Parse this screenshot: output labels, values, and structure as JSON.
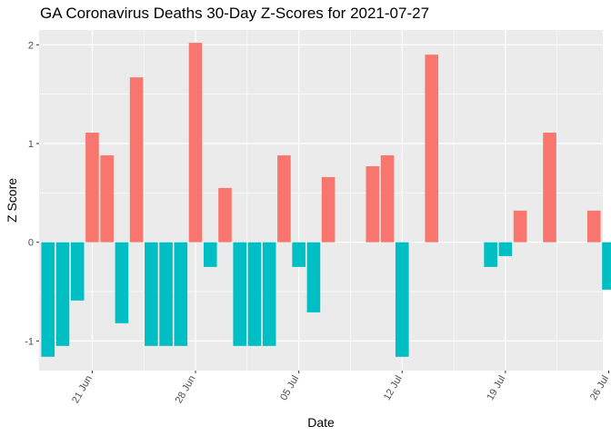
{
  "chart_data": {
    "type": "bar",
    "title": "GA Coronavirus Deaths 30-Day Z-Scores for 2021-07-27",
    "xlabel": "Date",
    "ylabel": "Z Score",
    "ylim": [
      -1.3,
      2.15
    ],
    "y_ticks": [
      -1,
      0,
      1,
      2
    ],
    "y_tick_labels": [
      "-1",
      "0",
      "1",
      "2"
    ],
    "x_range_day_index": [
      -0.6,
      37.6
    ],
    "x_ticks": [
      {
        "day_index": 3,
        "label": "21 Jun"
      },
      {
        "day_index": 10,
        "label": "28 Jun"
      },
      {
        "day_index": 17,
        "label": "05 Jul"
      },
      {
        "day_index": 24,
        "label": "12 Jul"
      },
      {
        "day_index": 31,
        "label": "19 Jul"
      },
      {
        "day_index": 38,
        "label": "26 Jul"
      }
    ],
    "start_date": "2021-06-18",
    "positive_color": "#F8766D",
    "negative_color": "#00BFC4",
    "values": [
      -1.16,
      -1.05,
      -0.59,
      1.11,
      0.88,
      -0.82,
      1.67,
      -1.05,
      -1.05,
      -1.05,
      2.02,
      -0.25,
      0.55,
      -1.05,
      -1.05,
      -1.05,
      0.88,
      -0.25,
      -0.71,
      0.66,
      0,
      0,
      0.77,
      0.88,
      -1.16,
      0,
      1.9,
      0,
      0,
      0,
      -0.25,
      -0.14,
      0.32,
      0,
      1.11,
      0,
      0,
      0.32,
      -0.48
    ]
  }
}
